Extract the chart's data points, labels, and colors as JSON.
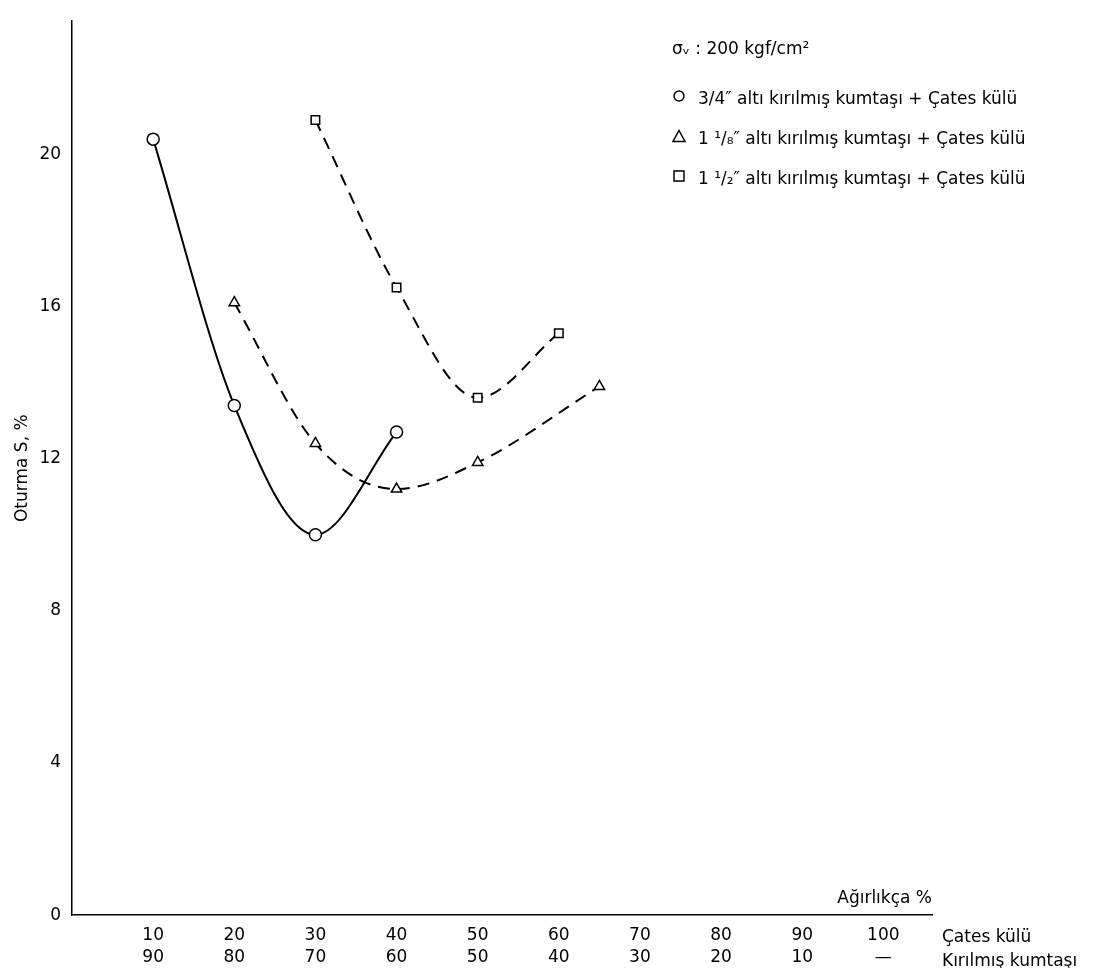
{
  "chart_data": {
    "type": "line",
    "ylabel": "Oturma S, %",
    "xlabel": "Ağırlıkça %",
    "legend_title": "σᵥ : 200 kgf/cm²",
    "legend": "top right",
    "grid": false,
    "annotations": [
      "Çates külü",
      "Kırılmış kumtaşı"
    ],
    "xlim": [
      0,
      106
    ],
    "ylim": [
      0,
      23.5
    ],
    "xticks": [
      10,
      20,
      30,
      40,
      50,
      60,
      70,
      80,
      90,
      100
    ],
    "x2lim": [
      100,
      -6
    ],
    "x2ticks": [
      90,
      80,
      70,
      60,
      50,
      40,
      30,
      20,
      10,
      {
        "value": 0,
        "label": "—"
      }
    ],
    "yticks": [
      0,
      4,
      8,
      12,
      16,
      20
    ],
    "series": [
      {
        "name": "3/4″ altı kırılmış kumtaşı + Çates külü",
        "color": "#000000",
        "marker": "circle",
        "line_style": "solid",
        "x": [
          10,
          20,
          30,
          40
        ],
        "values": [
          20.4,
          13.4,
          10.0,
          12.7
        ]
      },
      {
        "name": "1 ¹/₈″ altı kırılmış kumtaşı + Çates külü",
        "color": "#000000",
        "marker": "triangle",
        "line_style": "dashed",
        "x": [
          20,
          30,
          40,
          50,
          65
        ],
        "values": [
          16.1,
          12.4,
          11.2,
          11.9,
          13.9
        ]
      },
      {
        "name": "1 ¹/₂″ altı kırılmış kumtaşı + Çates külü",
        "color": "#000000",
        "marker": "square",
        "line_style": "dashed",
        "x": [
          30,
          40,
          50,
          60
        ],
        "values": [
          20.9,
          16.5,
          13.6,
          15.3
        ]
      }
    ]
  }
}
